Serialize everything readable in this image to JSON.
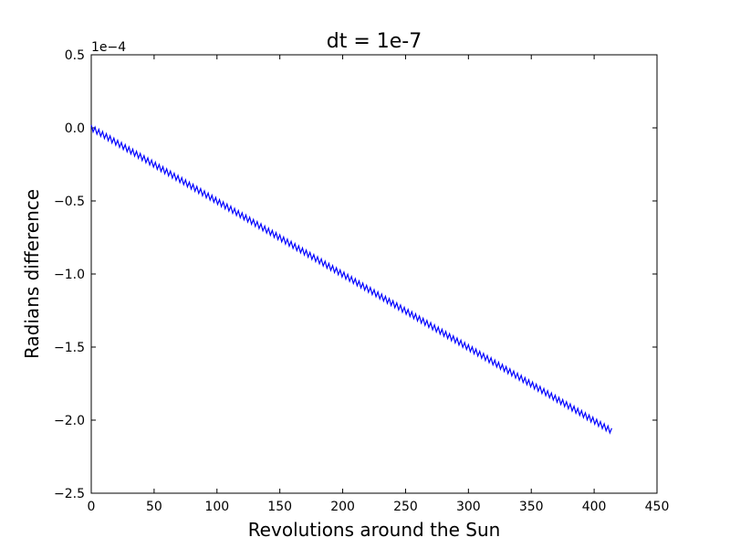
{
  "chart_data": {
    "type": "line",
    "title": "dt = 1e-7",
    "xlabel": "Revolutions around the Sun",
    "ylabel": "Radians difference",
    "y_offset_label": "1e−4",
    "xlim": [
      0,
      450
    ],
    "ylim": [
      -2.5,
      0.5
    ],
    "y_scale_factor": 0.0001,
    "grid": false,
    "x_ticks": [
      0,
      50,
      100,
      150,
      200,
      250,
      300,
      350,
      400,
      450
    ],
    "x_tick_labels": [
      "0",
      "50",
      "100",
      "150",
      "200",
      "250",
      "300",
      "350",
      "400",
      "450"
    ],
    "y_ticks": [
      0.5,
      0.0,
      -0.5,
      -1.0,
      -1.5,
      -2.0,
      -2.5
    ],
    "y_tick_labels": [
      "0.5",
      "0.0",
      "−0.5",
      "−1.0",
      "−1.5",
      "−2.0",
      "−2.5"
    ],
    "series": [
      {
        "color": "#0000ff",
        "x_start": 0,
        "x_end": 415,
        "y_start": 0.0,
        "y_end": -2.08,
        "oscillation_period": 3,
        "oscillation_amplitude": 0.02
      }
    ]
  }
}
